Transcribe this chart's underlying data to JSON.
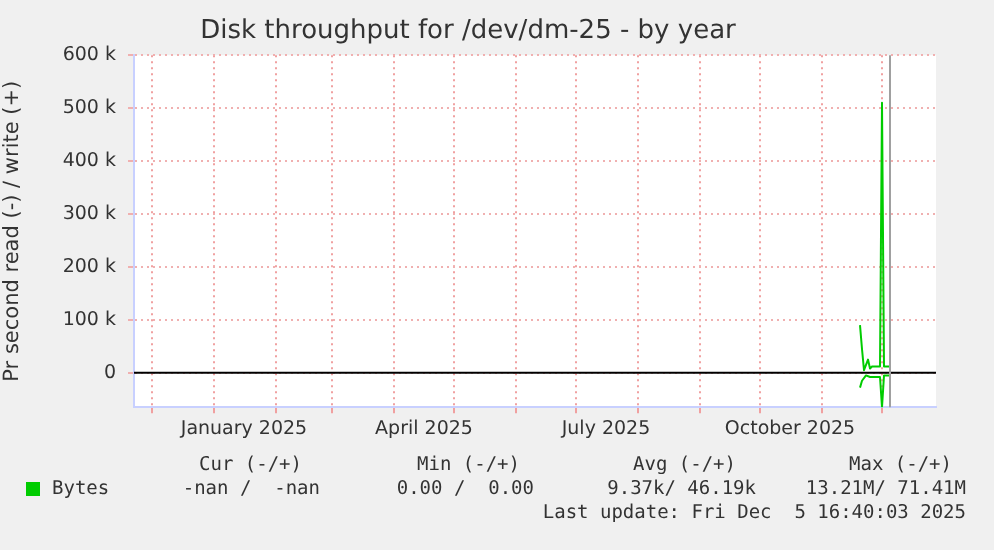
{
  "chart_data": {
    "type": "line",
    "title": "Disk throughput for /dev/dm-25 - by year",
    "ylabel": "Pr second read (-) / write (+)",
    "xlim": [
      "2024-11-22",
      "2025-12-28"
    ],
    "xticks": [
      {
        "value": "2024-12-01",
        "label": null
      },
      {
        "value": "2025-01-01",
        "label": null
      },
      {
        "value": "2025-01-16",
        "label": "January 2025"
      },
      {
        "value": "2025-02-01",
        "label": null
      },
      {
        "value": "2025-03-01",
        "label": null
      },
      {
        "value": "2025-04-01",
        "label": null
      },
      {
        "value": "2025-04-16",
        "label": "April 2025"
      },
      {
        "value": "2025-05-01",
        "label": null
      },
      {
        "value": "2025-06-01",
        "label": null
      },
      {
        "value": "2025-07-01",
        "label": null
      },
      {
        "value": "2025-07-16",
        "label": "July 2025"
      },
      {
        "value": "2025-08-01",
        "label": null
      },
      {
        "value": "2025-09-01",
        "label": null
      },
      {
        "value": "2025-10-01",
        "label": null
      },
      {
        "value": "2025-10-16",
        "label": "October 2025"
      },
      {
        "value": "2025-11-01",
        "label": null
      },
      {
        "value": "2025-12-01",
        "label": null
      }
    ],
    "ylim": [
      -65000,
      600000
    ],
    "yticks": [
      {
        "value": 0,
        "label": "0"
      },
      {
        "value": 100000,
        "label": "100 k"
      },
      {
        "value": 200000,
        "label": "200 k"
      },
      {
        "value": 300000,
        "label": "300 k"
      },
      {
        "value": 400000,
        "label": "400 k"
      },
      {
        "value": 500000,
        "label": "500 k"
      },
      {
        "value": 600000,
        "label": "600 k"
      }
    ],
    "series": [
      {
        "name": "Bytes",
        "color": "#00cc00",
        "x": [
          "2025-11-20",
          "2025-11-21",
          "2025-11-22",
          "2025-11-24",
          "2025-11-25",
          "2025-11-26",
          "2025-11-30",
          "2025-12-01",
          "2025-12-02",
          "2025-12-05"
        ],
        "values": [
          90000,
          45000,
          5000,
          25000,
          8000,
          12000,
          12000,
          510000,
          12000,
          12000
        ]
      },
      {
        "color": "#00cc00",
        "x": [
          "2025-11-20",
          "2025-11-21",
          "2025-11-23",
          "2025-11-25",
          "2025-11-30",
          "2025-12-01",
          "2025-12-02",
          "2025-12-05"
        ],
        "values": [
          -28000,
          -15000,
          -5000,
          -8000,
          -8000,
          -65000,
          -5000,
          -5000
        ]
      }
    ],
    "ref_lines": [
      {
        "axis": "y",
        "value": 0,
        "color": "#000000"
      },
      {
        "axis": "x",
        "value": "2025-12-05",
        "color": "#a0a0a0"
      }
    ],
    "grid": true,
    "legend": "bottom left",
    "marker": "none",
    "line_style": "solid",
    "annotations": [
      "Cur (-/+)",
      "Min (-/+)",
      "Avg (-/+)",
      "Max (-/+)",
      "-nan /  -nan",
      "0.00 /  0.00",
      "9.37k/ 46.19k",
      "13.21M/ 71.41M",
      "Last update: Fri Dec  5 16:40:03 2025"
    ]
  }
}
